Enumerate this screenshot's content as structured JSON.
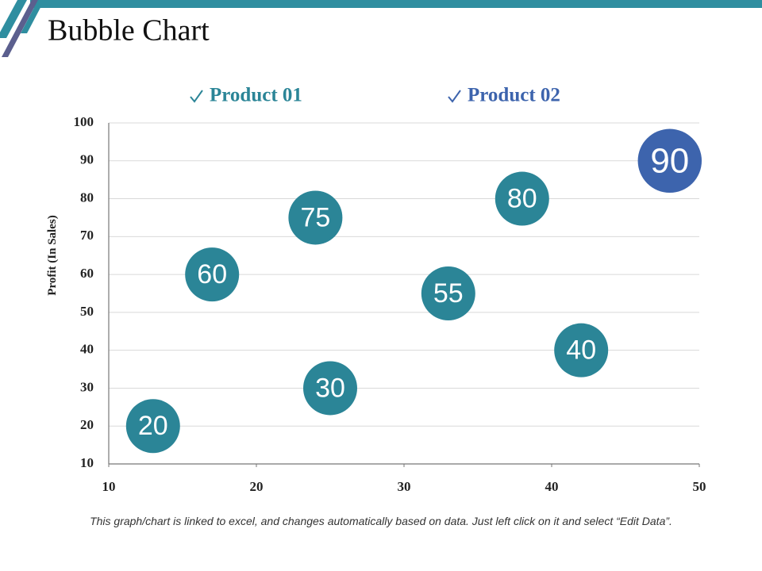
{
  "header": {
    "title": "Bubble Chart"
  },
  "chart_data": {
    "type": "bubble",
    "ylabel": "Profit  (In Sales)",
    "series": [
      {
        "name": "Product 01",
        "color": "#2b8597",
        "x": [
          13,
          17,
          24,
          25,
          33,
          38,
          42
        ],
        "values": [
          20,
          60,
          75,
          30,
          55,
          80,
          40
        ],
        "sizes": [
          10,
          10,
          10,
          10,
          10,
          10,
          10
        ]
      },
      {
        "name": "Product 02",
        "color": "#3d64ad",
        "x": [
          48
        ],
        "values": [
          90
        ],
        "sizes": [
          14
        ]
      }
    ],
    "xlim": [
      10,
      50
    ],
    "xticks": [
      10,
      20,
      30,
      40,
      50
    ],
    "ylim": [
      10,
      100
    ],
    "yticks": [
      10,
      20,
      30,
      40,
      50,
      60,
      70,
      80,
      90,
      100
    ],
    "grid": true,
    "legend": "top"
  },
  "footer": {
    "note": "This graph/chart is linked to excel, and changes automatically based on data. Just left click on it and select “Edit Data”."
  }
}
